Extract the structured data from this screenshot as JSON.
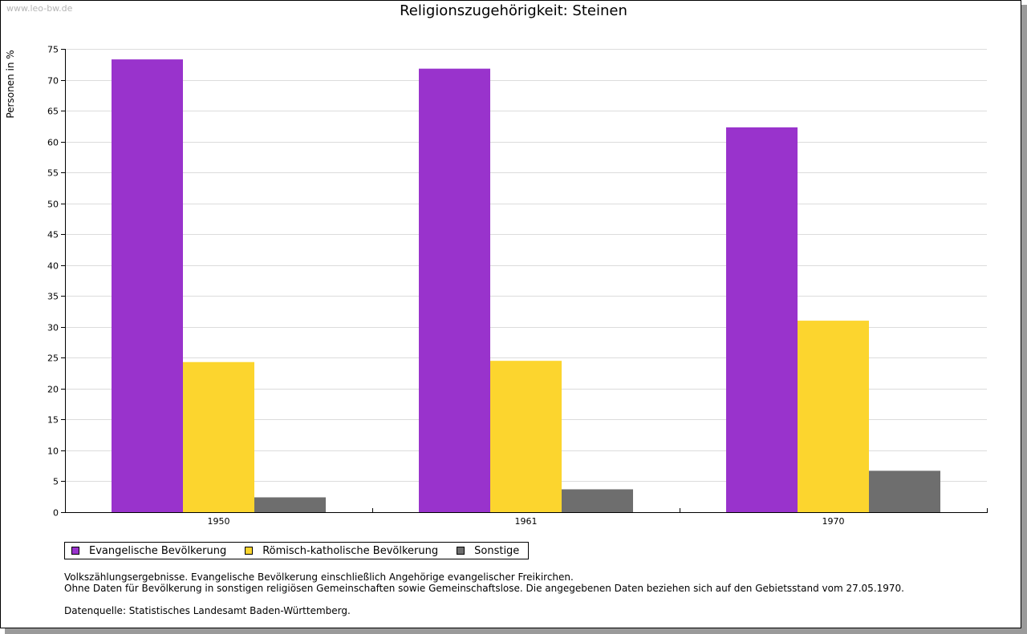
{
  "watermark": "www.leo-bw.de",
  "chart_data": {
    "type": "bar",
    "title": "Religionszugehörigkeit: Steinen",
    "xlabel": "",
    "ylabel": "Personen in %",
    "categories": [
      "1950",
      "1961",
      "1970"
    ],
    "ylim": [
      0,
      75
    ],
    "yticks": [
      0,
      5,
      10,
      15,
      20,
      25,
      30,
      35,
      40,
      45,
      50,
      55,
      60,
      65,
      70,
      75
    ],
    "grid": true,
    "legend_position": "bottom-left",
    "series": [
      {
        "name": "Evangelische Bevölkerung",
        "color": "#9933cc",
        "values": [
          73.3,
          71.8,
          62.3
        ]
      },
      {
        "name": "Römisch-katholische Bevölkerung",
        "color": "#fcd52e",
        "values": [
          24.3,
          24.5,
          31.0
        ]
      },
      {
        "name": "Sonstige",
        "color": "#6e6e6e",
        "values": [
          2.4,
          3.7,
          6.7
        ]
      }
    ]
  },
  "notes": {
    "line1": "Volkszählungsergebnisse. Evangelische Bevölkerung einschließlich Angehörige evangelischer Freikirchen.",
    "line2": "Ohne Daten für Bevölkerung in sonstigen religiösen Gemeinschaften sowie Gemeinschaftslose. Die angegebenen Daten beziehen sich auf den Gebietsstand vom 27.05.1970.",
    "source": "Datenquelle: Statistisches Landesamt Baden-Württemberg."
  }
}
